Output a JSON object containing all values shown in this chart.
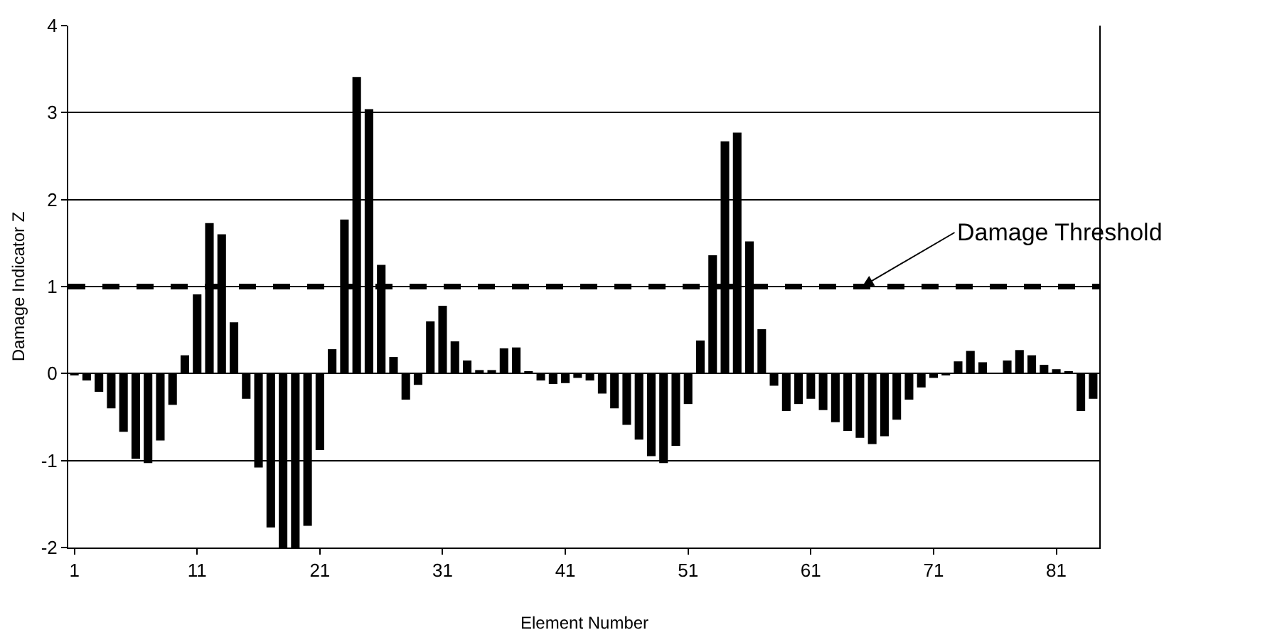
{
  "chart_data": {
    "type": "bar",
    "xlabel": "Element Number",
    "ylabel": "Damage Indicator Z",
    "categories": [
      "1",
      null,
      null,
      null,
      null,
      null,
      null,
      null,
      null,
      null,
      "11",
      null,
      null,
      null,
      null,
      null,
      null,
      null,
      null,
      null,
      "21",
      null,
      null,
      null,
      null,
      null,
      null,
      null,
      null,
      null,
      "31",
      null,
      null,
      null,
      null,
      null,
      null,
      null,
      null,
      null,
      "41",
      null,
      null,
      null,
      null,
      null,
      null,
      null,
      null,
      null,
      "51",
      null,
      null,
      null,
      null,
      null,
      null,
      null,
      null,
      null,
      "61",
      null,
      null,
      null,
      null,
      null,
      null,
      null,
      null,
      null,
      "71",
      null,
      null,
      null,
      null,
      null,
      null,
      null,
      null,
      null,
      "81",
      null,
      null,
      null
    ],
    "values": [
      -0.02,
      -0.08,
      -0.21,
      -0.4,
      -0.67,
      -0.98,
      -1.03,
      -0.77,
      -0.36,
      0.21,
      0.91,
      1.73,
      1.6,
      0.59,
      -0.29,
      -1.08,
      -1.77,
      -2.0,
      -2.0,
      -1.75,
      -0.88,
      0.28,
      1.77,
      3.41,
      3.04,
      1.25,
      0.19,
      -0.3,
      -0.13,
      0.6,
      0.78,
      0.37,
      0.15,
      0.04,
      0.04,
      0.29,
      0.3,
      0.02,
      -0.08,
      -0.12,
      -0.11,
      -0.05,
      -0.08,
      -0.23,
      -0.4,
      -0.59,
      -0.76,
      -0.95,
      -1.03,
      -0.83,
      -0.35,
      0.38,
      1.36,
      2.67,
      2.77,
      1.52,
      0.51,
      -0.14,
      -0.43,
      -0.35,
      -0.29,
      -0.42,
      -0.56,
      -0.66,
      -0.74,
      -0.81,
      -0.72,
      -0.53,
      -0.3,
      -0.16,
      -0.05,
      -0.02,
      0.14,
      0.26,
      0.13,
      0.01,
      0.15,
      0.27,
      0.21,
      0.1,
      0.05,
      0.02,
      -0.43,
      -0.29
    ],
    "color": "#000000",
    "ylim": [
      -2,
      4
    ],
    "yticks": [
      -2,
      -1,
      0,
      1,
      2,
      3,
      4
    ],
    "grid": "y",
    "legend": false,
    "ref_lines": [
      {
        "axis": "y",
        "value": 1,
        "label": "Damage Threshold",
        "color": "#000000",
        "line_style": "dashed"
      }
    ]
  }
}
